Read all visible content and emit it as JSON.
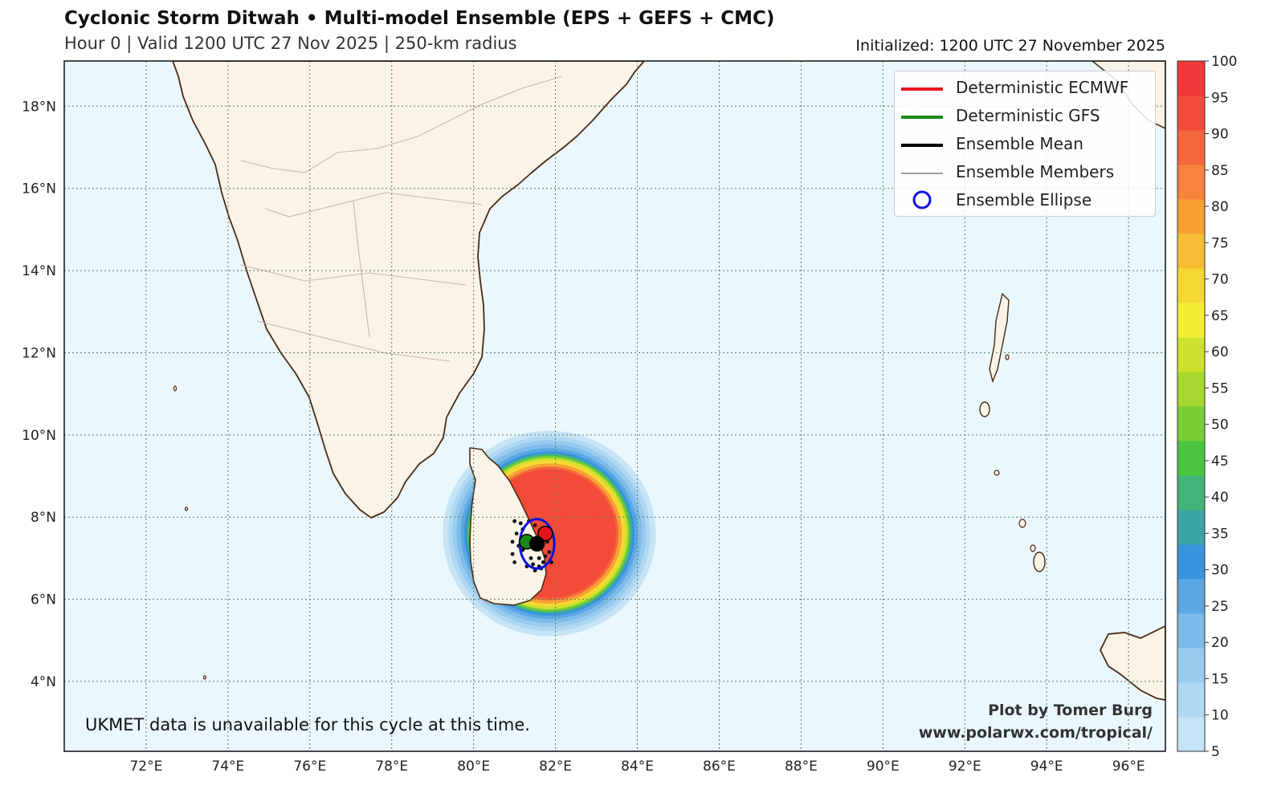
{
  "header": {
    "title": "Cyclonic Storm Ditwah • Multi-model Ensemble (EPS + GEFS + CMC)",
    "subtitle": "Hour 0 | Valid 1200 UTC 27 Nov 2025 | 250-km radius",
    "initialized": "Initialized: 1200 UTC 27 November 2025"
  },
  "map": {
    "lon_labels": [
      "72°E",
      "74°E",
      "76°E",
      "78°E",
      "80°E",
      "82°E",
      "84°E",
      "86°E",
      "88°E",
      "90°E",
      "92°E",
      "94°E",
      "96°E"
    ],
    "lat_labels": [
      "4°N",
      "6°N",
      "8°N",
      "10°N",
      "12°N",
      "14°N",
      "16°N",
      "18°N"
    ],
    "lon_range": [
      70.0,
      96.9
    ],
    "lat_range": [
      2.3,
      19.1
    ],
    "storm": {
      "ecmwf_center": [
        81.75,
        7.6
      ],
      "gfs_center": [
        81.3,
        7.4
      ],
      "mean_center": [
        81.55,
        7.35
      ],
      "ellipse_center": [
        81.55,
        7.35
      ],
      "ellipse_radii_deg": [
        0.42,
        0.6
      ],
      "members": [
        [
          81.0,
          7.9
        ],
        [
          81.2,
          7.7
        ],
        [
          81.1,
          7.3
        ],
        [
          80.95,
          7.1
        ],
        [
          81.0,
          6.9
        ],
        [
          81.3,
          6.8
        ],
        [
          81.5,
          6.7
        ],
        [
          81.6,
          6.8
        ],
        [
          81.7,
          6.9
        ],
        [
          81.9,
          6.9
        ],
        [
          81.4,
          7.0
        ],
        [
          81.6,
          7.0
        ],
        [
          81.3,
          7.5
        ],
        [
          81.5,
          7.8
        ],
        [
          81.7,
          7.7
        ],
        [
          81.8,
          7.4
        ],
        [
          81.2,
          7.2
        ],
        [
          81.05,
          7.6
        ],
        [
          80.95,
          7.4
        ],
        [
          81.45,
          6.85
        ],
        [
          81.75,
          7.05
        ],
        [
          81.55,
          7.25
        ],
        [
          81.35,
          7.9
        ],
        [
          81.15,
          7.85
        ],
        [
          81.65,
          6.75
        ],
        [
          81.85,
          7.15
        ]
      ]
    },
    "probability_contours": [
      {
        "value": 5,
        "radius_deg": 2.55
      },
      {
        "value": 10,
        "radius_deg": 2.42
      },
      {
        "value": 15,
        "radius_deg": 2.32
      },
      {
        "value": 20,
        "radius_deg": 2.22
      },
      {
        "value": 25,
        "radius_deg": 2.12
      },
      {
        "value": 30,
        "radius_deg": 2.04
      },
      {
        "value": 40,
        "radius_deg": 1.98
      },
      {
        "value": 50,
        "radius_deg": 1.93
      },
      {
        "value": 60,
        "radius_deg": 1.88
      },
      {
        "value": 70,
        "radius_deg": 1.82
      },
      {
        "value": 80,
        "radius_deg": 1.74
      },
      {
        "value": 90,
        "radius_deg": 1.66
      },
      {
        "value": 95,
        "radius_deg": 1.6
      }
    ],
    "probability_center": [
      81.85,
      7.6
    ]
  },
  "legend": {
    "items": [
      {
        "label": "Deterministic ECMWF",
        "icon": "red-line",
        "color": "#e8141b"
      },
      {
        "label": "Deterministic GFS",
        "icon": "green-line",
        "color": "#178a16"
      },
      {
        "label": "Ensemble Mean",
        "icon": "black-line",
        "color": "#000000"
      },
      {
        "label": "Ensemble Members",
        "icon": "thin-line",
        "color": "#000000"
      },
      {
        "label": "Ensemble Ellipse",
        "icon": "blue-circle",
        "color": "#1010e0"
      }
    ]
  },
  "colorbar": {
    "labels": [
      "5",
      "10",
      "15",
      "20",
      "25",
      "30",
      "35",
      "40",
      "45",
      "50",
      "55",
      "60",
      "65",
      "70",
      "75",
      "80",
      "85",
      "90",
      "95",
      "100"
    ],
    "colors": [
      "#c6e4f6",
      "#b0d8f2",
      "#98cbee",
      "#7dbbea",
      "#5aa7e3",
      "#3894dc",
      "#3aa6a4",
      "#41b578",
      "#4ac53f",
      "#78cd34",
      "#a6d82f",
      "#cde22e",
      "#f2ef35",
      "#f5d834",
      "#f7bd34",
      "#f7a135",
      "#f7843a",
      "#f5663a",
      "#f44b39",
      "#f23838"
    ]
  },
  "notes": {
    "unavailable": "UKMET data is unavailable for this cycle at this time.",
    "credit_line1": "Plot by Tomer Burg",
    "credit_line2": "www.polarwx.com/tropical/"
  }
}
